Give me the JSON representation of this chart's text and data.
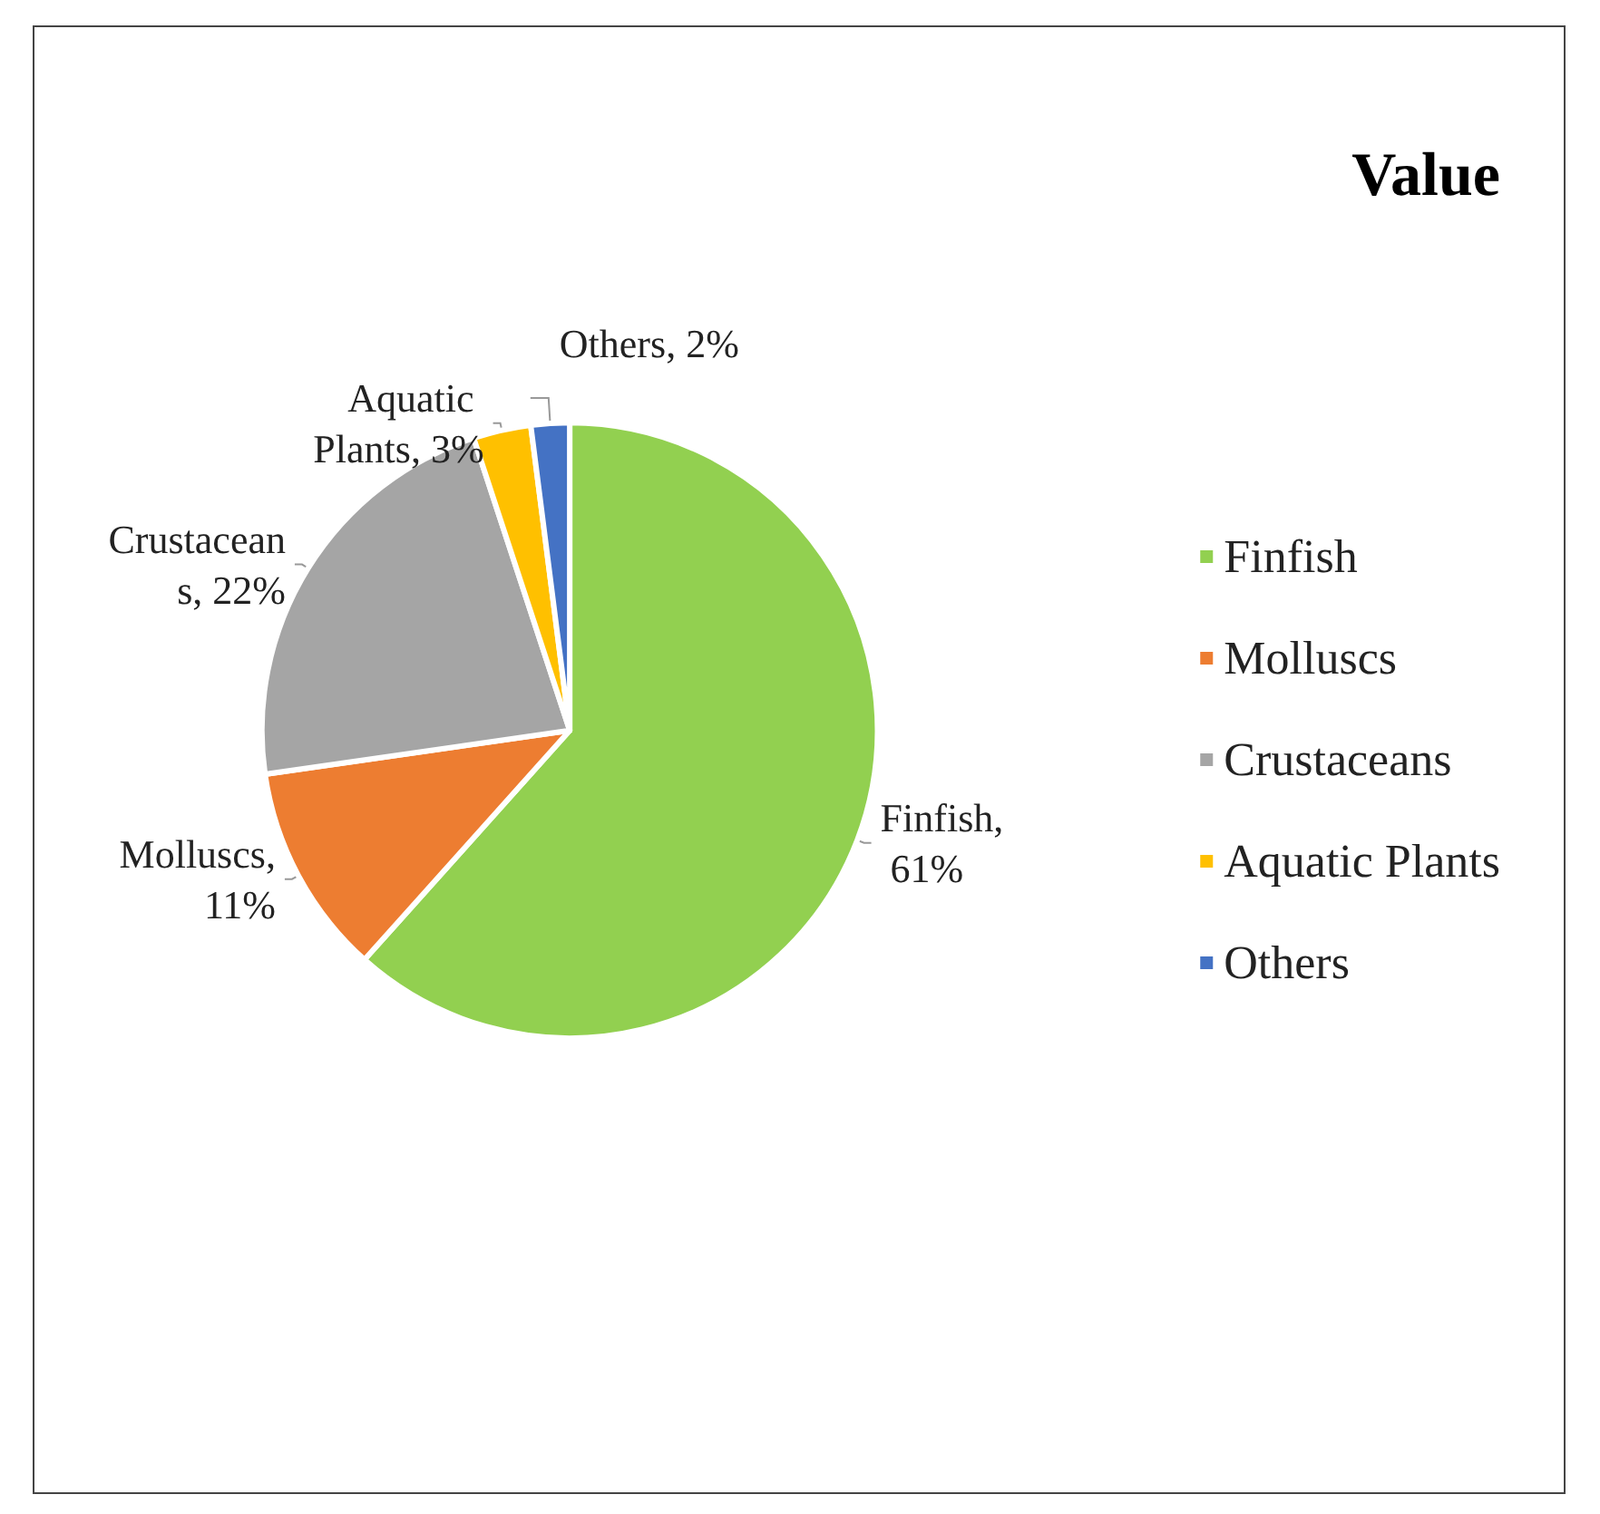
{
  "chart_data": {
    "type": "pie",
    "title": "Value",
    "categories": [
      "Finfish",
      "Molluscs",
      "Crustaceans",
      "Aquatic Plants",
      "Others"
    ],
    "values": [
      61,
      11,
      22,
      3,
      2
    ],
    "colors": [
      "#92d050",
      "#ed7d31",
      "#a5a5a5",
      "#ffc000",
      "#4472c4"
    ],
    "value_labels": [
      "Finfish, 61%",
      "Molluscs, 11%",
      "Crustacean s, 22%",
      "Aquatic Plants, 3%",
      "Others, 2%"
    ],
    "legend": "right"
  }
}
